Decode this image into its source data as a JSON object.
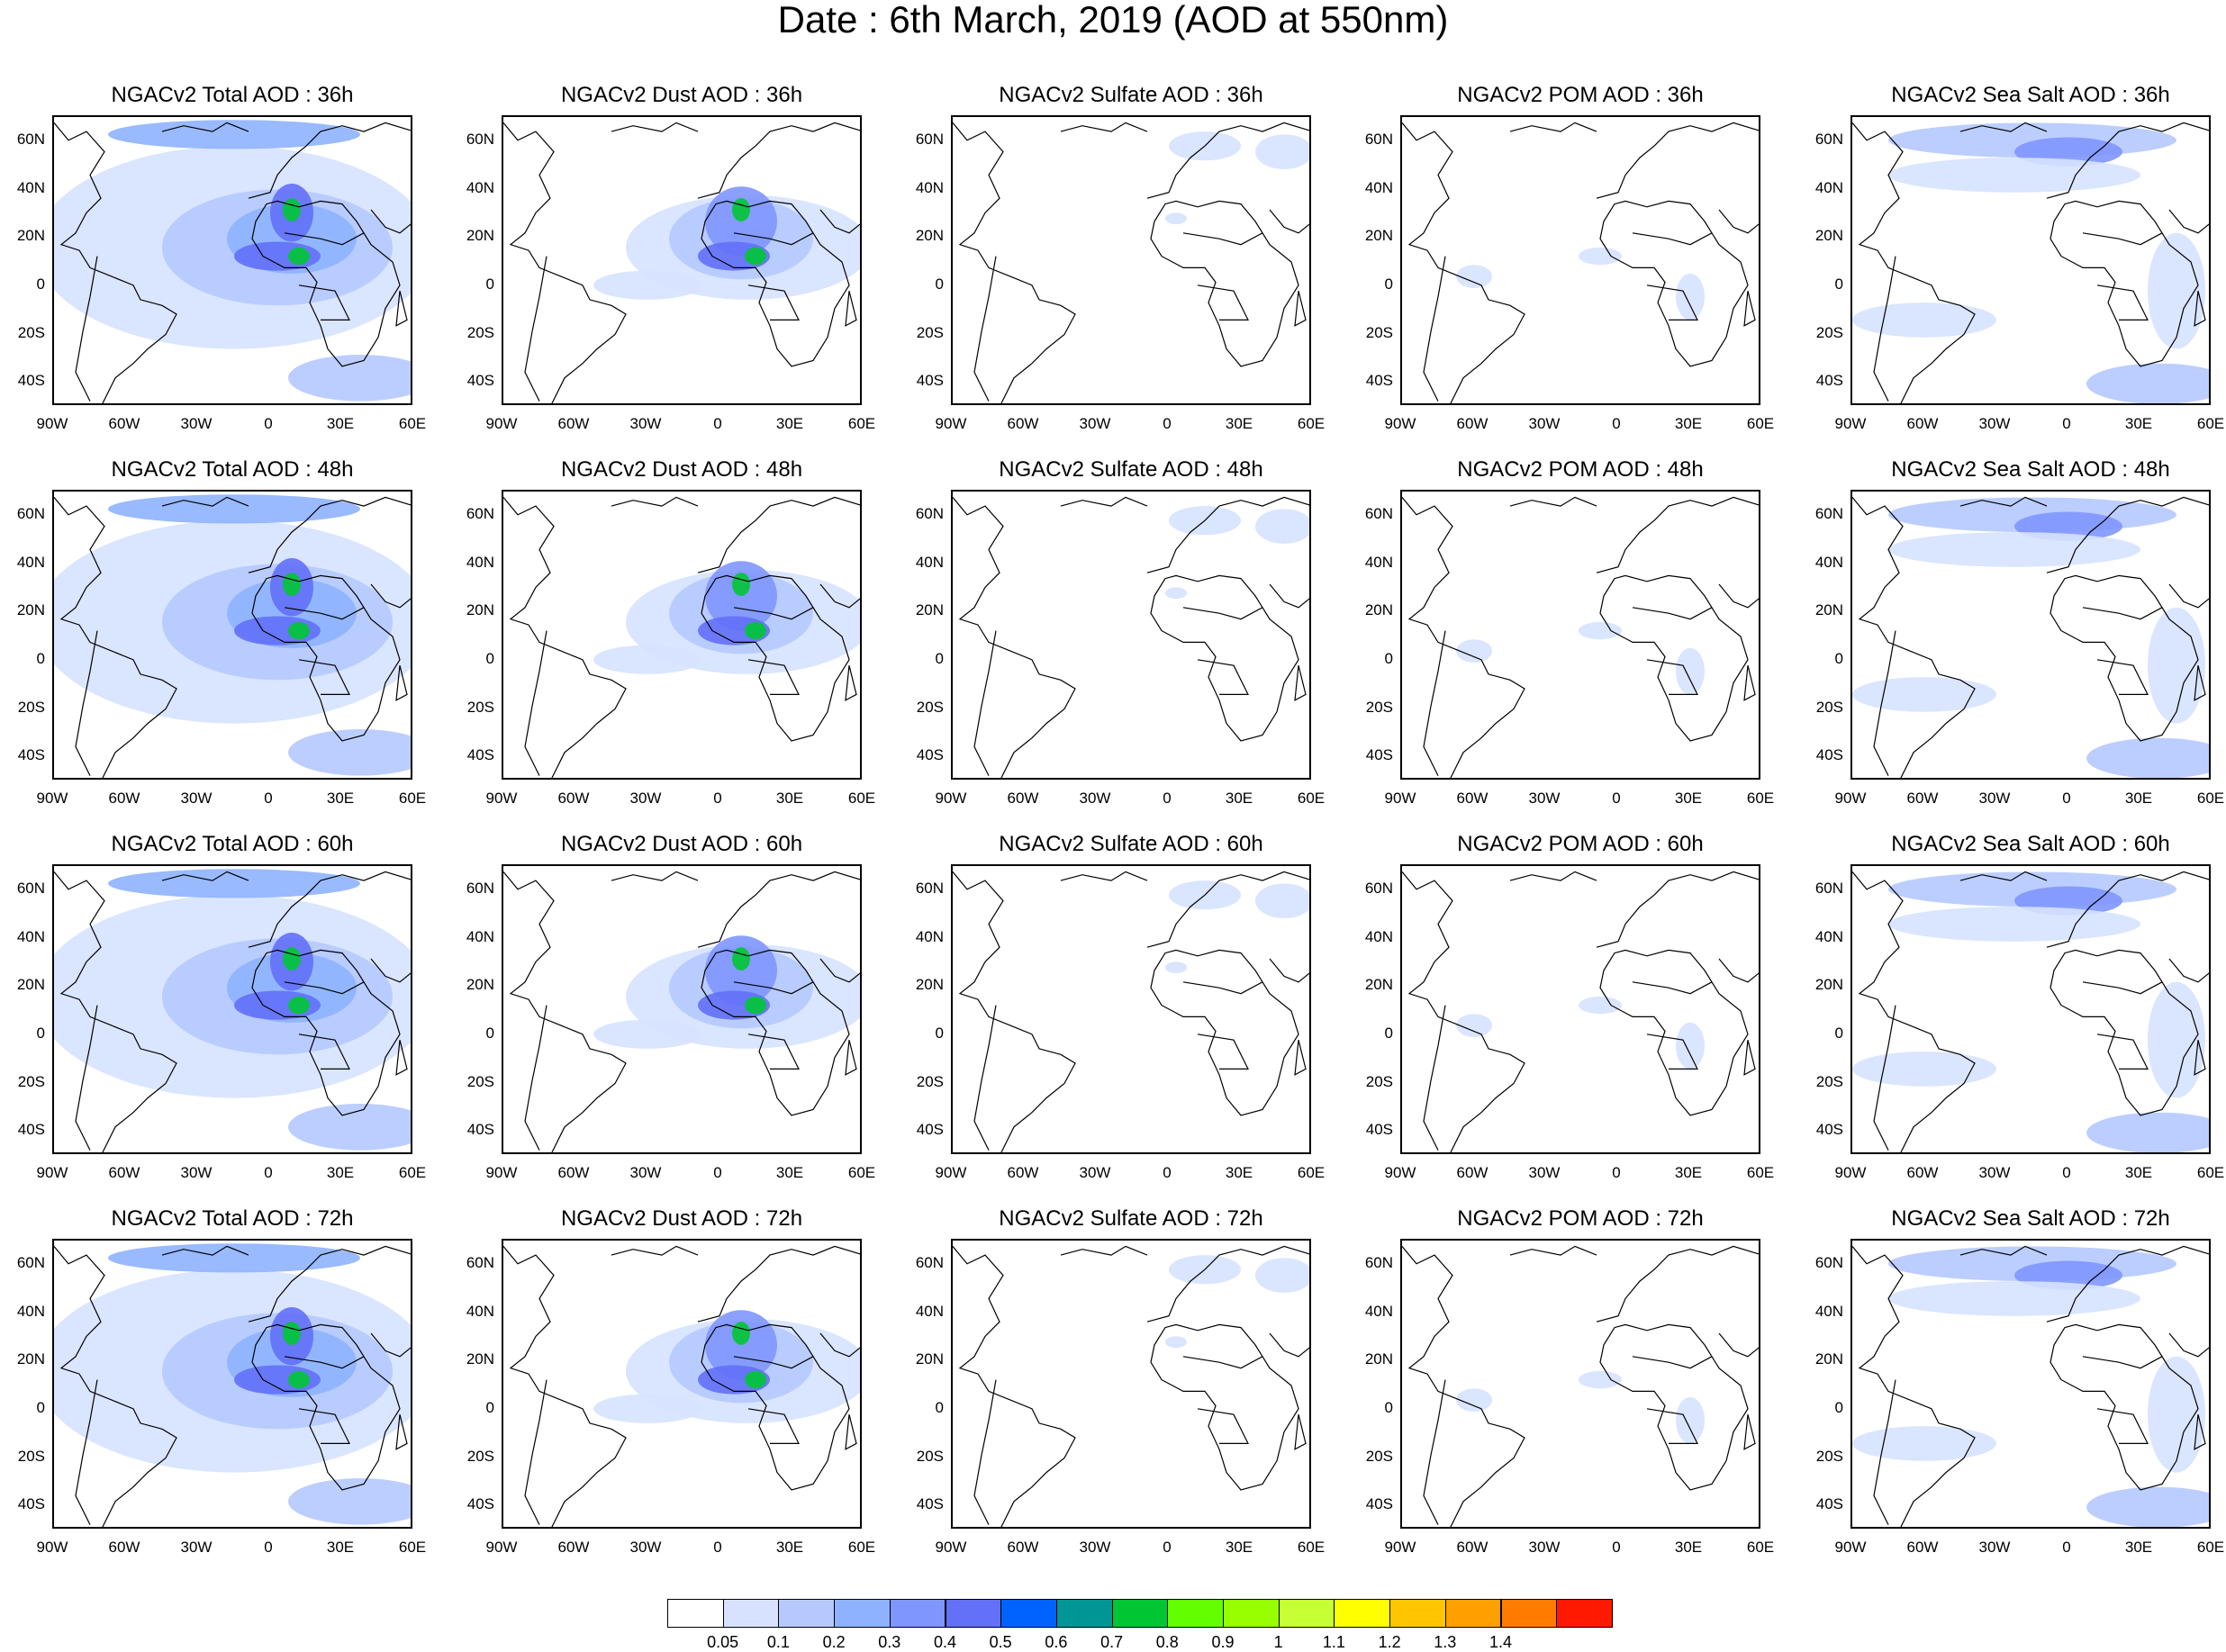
{
  "title": "Date : 6th March, 2019 (AOD at 550nm)",
  "map": {
    "lat_labels": [
      "60N",
      "40N",
      "20N",
      "0",
      "20S",
      "40S"
    ],
    "lon_labels": [
      "90W",
      "60W",
      "30W",
      "0",
      "30E",
      "60E"
    ]
  },
  "panels": [
    {
      "title": "NGACv2 Total AOD : 36h",
      "type": "total"
    },
    {
      "title": "NGACv2 Dust AOD : 36h",
      "type": "dust"
    },
    {
      "title": "NGACv2 Sulfate AOD : 36h",
      "type": "sulfate"
    },
    {
      "title": "NGACv2 POM AOD : 36h",
      "type": "pom"
    },
    {
      "title": "NGACv2 Sea Salt AOD : 36h",
      "type": "seasalt"
    },
    {
      "title": "NGACv2 Total AOD : 48h",
      "type": "total"
    },
    {
      "title": "NGACv2 Dust AOD : 48h",
      "type": "dust"
    },
    {
      "title": "NGACv2 Sulfate AOD : 48h",
      "type": "sulfate"
    },
    {
      "title": "NGACv2 POM AOD : 48h",
      "type": "pom"
    },
    {
      "title": "NGACv2 Sea Salt AOD : 48h",
      "type": "seasalt"
    },
    {
      "title": "NGACv2 Total AOD : 60h",
      "type": "total"
    },
    {
      "title": "NGACv2 Dust AOD : 60h",
      "type": "dust"
    },
    {
      "title": "NGACv2 Sulfate AOD : 60h",
      "type": "sulfate"
    },
    {
      "title": "NGACv2 POM AOD : 60h",
      "type": "pom"
    },
    {
      "title": "NGACv2 Sea Salt AOD : 60h",
      "type": "seasalt"
    },
    {
      "title": "NGACv2 Total AOD : 72h",
      "type": "total"
    },
    {
      "title": "NGACv2 Dust AOD : 72h",
      "type": "dust"
    },
    {
      "title": "NGACv2 Sulfate AOD : 72h",
      "type": "sulfate"
    },
    {
      "title": "NGACv2 POM AOD : 72h",
      "type": "pom"
    },
    {
      "title": "NGACv2 Sea Salt  AOD : 72h",
      "type": "seasalt"
    }
  ],
  "colorbar": {
    "colors": [
      "#ffffff",
      "#d6e2ff",
      "#b5c9ff",
      "#8eb2ff",
      "#7f96ff",
      "#6370f8",
      "#0063ff",
      "#009696",
      "#00c633",
      "#63ff00",
      "#96ff00",
      "#c6ff33",
      "#ffff00",
      "#ffc600",
      "#ffa000",
      "#ff7c00",
      "#ff1900"
    ],
    "labels": [
      "0.05",
      "0.1",
      "0.2",
      "0.3",
      "0.4",
      "0.5",
      "0.6",
      "0.7",
      "0.8",
      "0.9",
      "1",
      "1.1",
      "1.2",
      "1.3",
      "1.4"
    ]
  }
}
